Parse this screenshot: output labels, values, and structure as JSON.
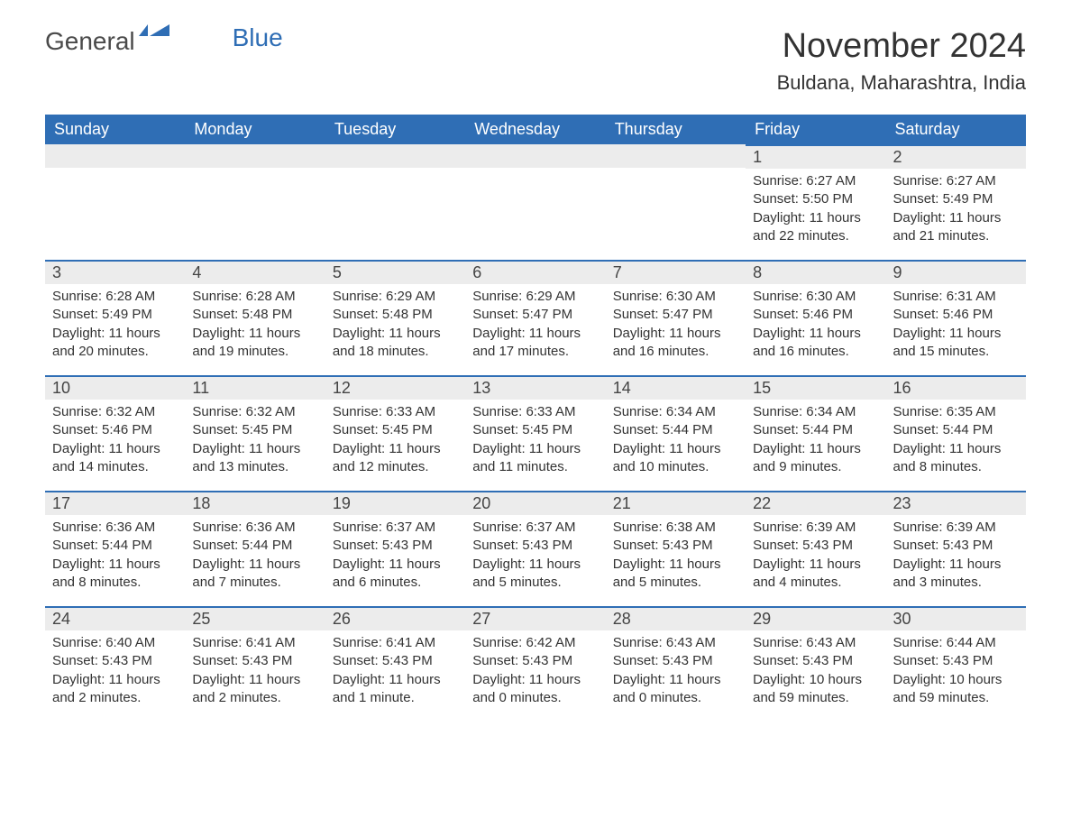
{
  "logo": {
    "part1": "General",
    "part2": "Blue"
  },
  "title": "November 2024",
  "location": "Buldana, Maharashtra, India",
  "colors": {
    "header_bg": "#2f6eb5",
    "header_text": "#ffffff",
    "daynum_bg": "#ececec",
    "daynum_border": "#2f6eb5",
    "body_bg": "#ffffff",
    "text": "#333333",
    "logo_blue": "#2f6eb5"
  },
  "typography": {
    "title_fontsize": 38,
    "location_fontsize": 22,
    "dayheader_fontsize": 18,
    "daynum_fontsize": 18,
    "body_fontsize": 15
  },
  "day_headers": [
    "Sunday",
    "Monday",
    "Tuesday",
    "Wednesday",
    "Thursday",
    "Friday",
    "Saturday"
  ],
  "weeks": [
    [
      null,
      null,
      null,
      null,
      null,
      {
        "n": "1",
        "sunrise": "Sunrise: 6:27 AM",
        "sunset": "Sunset: 5:50 PM",
        "daylight": "Daylight: 11 hours and 22 minutes."
      },
      {
        "n": "2",
        "sunrise": "Sunrise: 6:27 AM",
        "sunset": "Sunset: 5:49 PM",
        "daylight": "Daylight: 11 hours and 21 minutes."
      }
    ],
    [
      {
        "n": "3",
        "sunrise": "Sunrise: 6:28 AM",
        "sunset": "Sunset: 5:49 PM",
        "daylight": "Daylight: 11 hours and 20 minutes."
      },
      {
        "n": "4",
        "sunrise": "Sunrise: 6:28 AM",
        "sunset": "Sunset: 5:48 PM",
        "daylight": "Daylight: 11 hours and 19 minutes."
      },
      {
        "n": "5",
        "sunrise": "Sunrise: 6:29 AM",
        "sunset": "Sunset: 5:48 PM",
        "daylight": "Daylight: 11 hours and 18 minutes."
      },
      {
        "n": "6",
        "sunrise": "Sunrise: 6:29 AM",
        "sunset": "Sunset: 5:47 PM",
        "daylight": "Daylight: 11 hours and 17 minutes."
      },
      {
        "n": "7",
        "sunrise": "Sunrise: 6:30 AM",
        "sunset": "Sunset: 5:47 PM",
        "daylight": "Daylight: 11 hours and 16 minutes."
      },
      {
        "n": "8",
        "sunrise": "Sunrise: 6:30 AM",
        "sunset": "Sunset: 5:46 PM",
        "daylight": "Daylight: 11 hours and 16 minutes."
      },
      {
        "n": "9",
        "sunrise": "Sunrise: 6:31 AM",
        "sunset": "Sunset: 5:46 PM",
        "daylight": "Daylight: 11 hours and 15 minutes."
      }
    ],
    [
      {
        "n": "10",
        "sunrise": "Sunrise: 6:32 AM",
        "sunset": "Sunset: 5:46 PM",
        "daylight": "Daylight: 11 hours and 14 minutes."
      },
      {
        "n": "11",
        "sunrise": "Sunrise: 6:32 AM",
        "sunset": "Sunset: 5:45 PM",
        "daylight": "Daylight: 11 hours and 13 minutes."
      },
      {
        "n": "12",
        "sunrise": "Sunrise: 6:33 AM",
        "sunset": "Sunset: 5:45 PM",
        "daylight": "Daylight: 11 hours and 12 minutes."
      },
      {
        "n": "13",
        "sunrise": "Sunrise: 6:33 AM",
        "sunset": "Sunset: 5:45 PM",
        "daylight": "Daylight: 11 hours and 11 minutes."
      },
      {
        "n": "14",
        "sunrise": "Sunrise: 6:34 AM",
        "sunset": "Sunset: 5:44 PM",
        "daylight": "Daylight: 11 hours and 10 minutes."
      },
      {
        "n": "15",
        "sunrise": "Sunrise: 6:34 AM",
        "sunset": "Sunset: 5:44 PM",
        "daylight": "Daylight: 11 hours and 9 minutes."
      },
      {
        "n": "16",
        "sunrise": "Sunrise: 6:35 AM",
        "sunset": "Sunset: 5:44 PM",
        "daylight": "Daylight: 11 hours and 8 minutes."
      }
    ],
    [
      {
        "n": "17",
        "sunrise": "Sunrise: 6:36 AM",
        "sunset": "Sunset: 5:44 PM",
        "daylight": "Daylight: 11 hours and 8 minutes."
      },
      {
        "n": "18",
        "sunrise": "Sunrise: 6:36 AM",
        "sunset": "Sunset: 5:44 PM",
        "daylight": "Daylight: 11 hours and 7 minutes."
      },
      {
        "n": "19",
        "sunrise": "Sunrise: 6:37 AM",
        "sunset": "Sunset: 5:43 PM",
        "daylight": "Daylight: 11 hours and 6 minutes."
      },
      {
        "n": "20",
        "sunrise": "Sunrise: 6:37 AM",
        "sunset": "Sunset: 5:43 PM",
        "daylight": "Daylight: 11 hours and 5 minutes."
      },
      {
        "n": "21",
        "sunrise": "Sunrise: 6:38 AM",
        "sunset": "Sunset: 5:43 PM",
        "daylight": "Daylight: 11 hours and 5 minutes."
      },
      {
        "n": "22",
        "sunrise": "Sunrise: 6:39 AM",
        "sunset": "Sunset: 5:43 PM",
        "daylight": "Daylight: 11 hours and 4 minutes."
      },
      {
        "n": "23",
        "sunrise": "Sunrise: 6:39 AM",
        "sunset": "Sunset: 5:43 PM",
        "daylight": "Daylight: 11 hours and 3 minutes."
      }
    ],
    [
      {
        "n": "24",
        "sunrise": "Sunrise: 6:40 AM",
        "sunset": "Sunset: 5:43 PM",
        "daylight": "Daylight: 11 hours and 2 minutes."
      },
      {
        "n": "25",
        "sunrise": "Sunrise: 6:41 AM",
        "sunset": "Sunset: 5:43 PM",
        "daylight": "Daylight: 11 hours and 2 minutes."
      },
      {
        "n": "26",
        "sunrise": "Sunrise: 6:41 AM",
        "sunset": "Sunset: 5:43 PM",
        "daylight": "Daylight: 11 hours and 1 minute."
      },
      {
        "n": "27",
        "sunrise": "Sunrise: 6:42 AM",
        "sunset": "Sunset: 5:43 PM",
        "daylight": "Daylight: 11 hours and 0 minutes."
      },
      {
        "n": "28",
        "sunrise": "Sunrise: 6:43 AM",
        "sunset": "Sunset: 5:43 PM",
        "daylight": "Daylight: 11 hours and 0 minutes."
      },
      {
        "n": "29",
        "sunrise": "Sunrise: 6:43 AM",
        "sunset": "Sunset: 5:43 PM",
        "daylight": "Daylight: 10 hours and 59 minutes."
      },
      {
        "n": "30",
        "sunrise": "Sunrise: 6:44 AM",
        "sunset": "Sunset: 5:43 PM",
        "daylight": "Daylight: 10 hours and 59 minutes."
      }
    ]
  ]
}
